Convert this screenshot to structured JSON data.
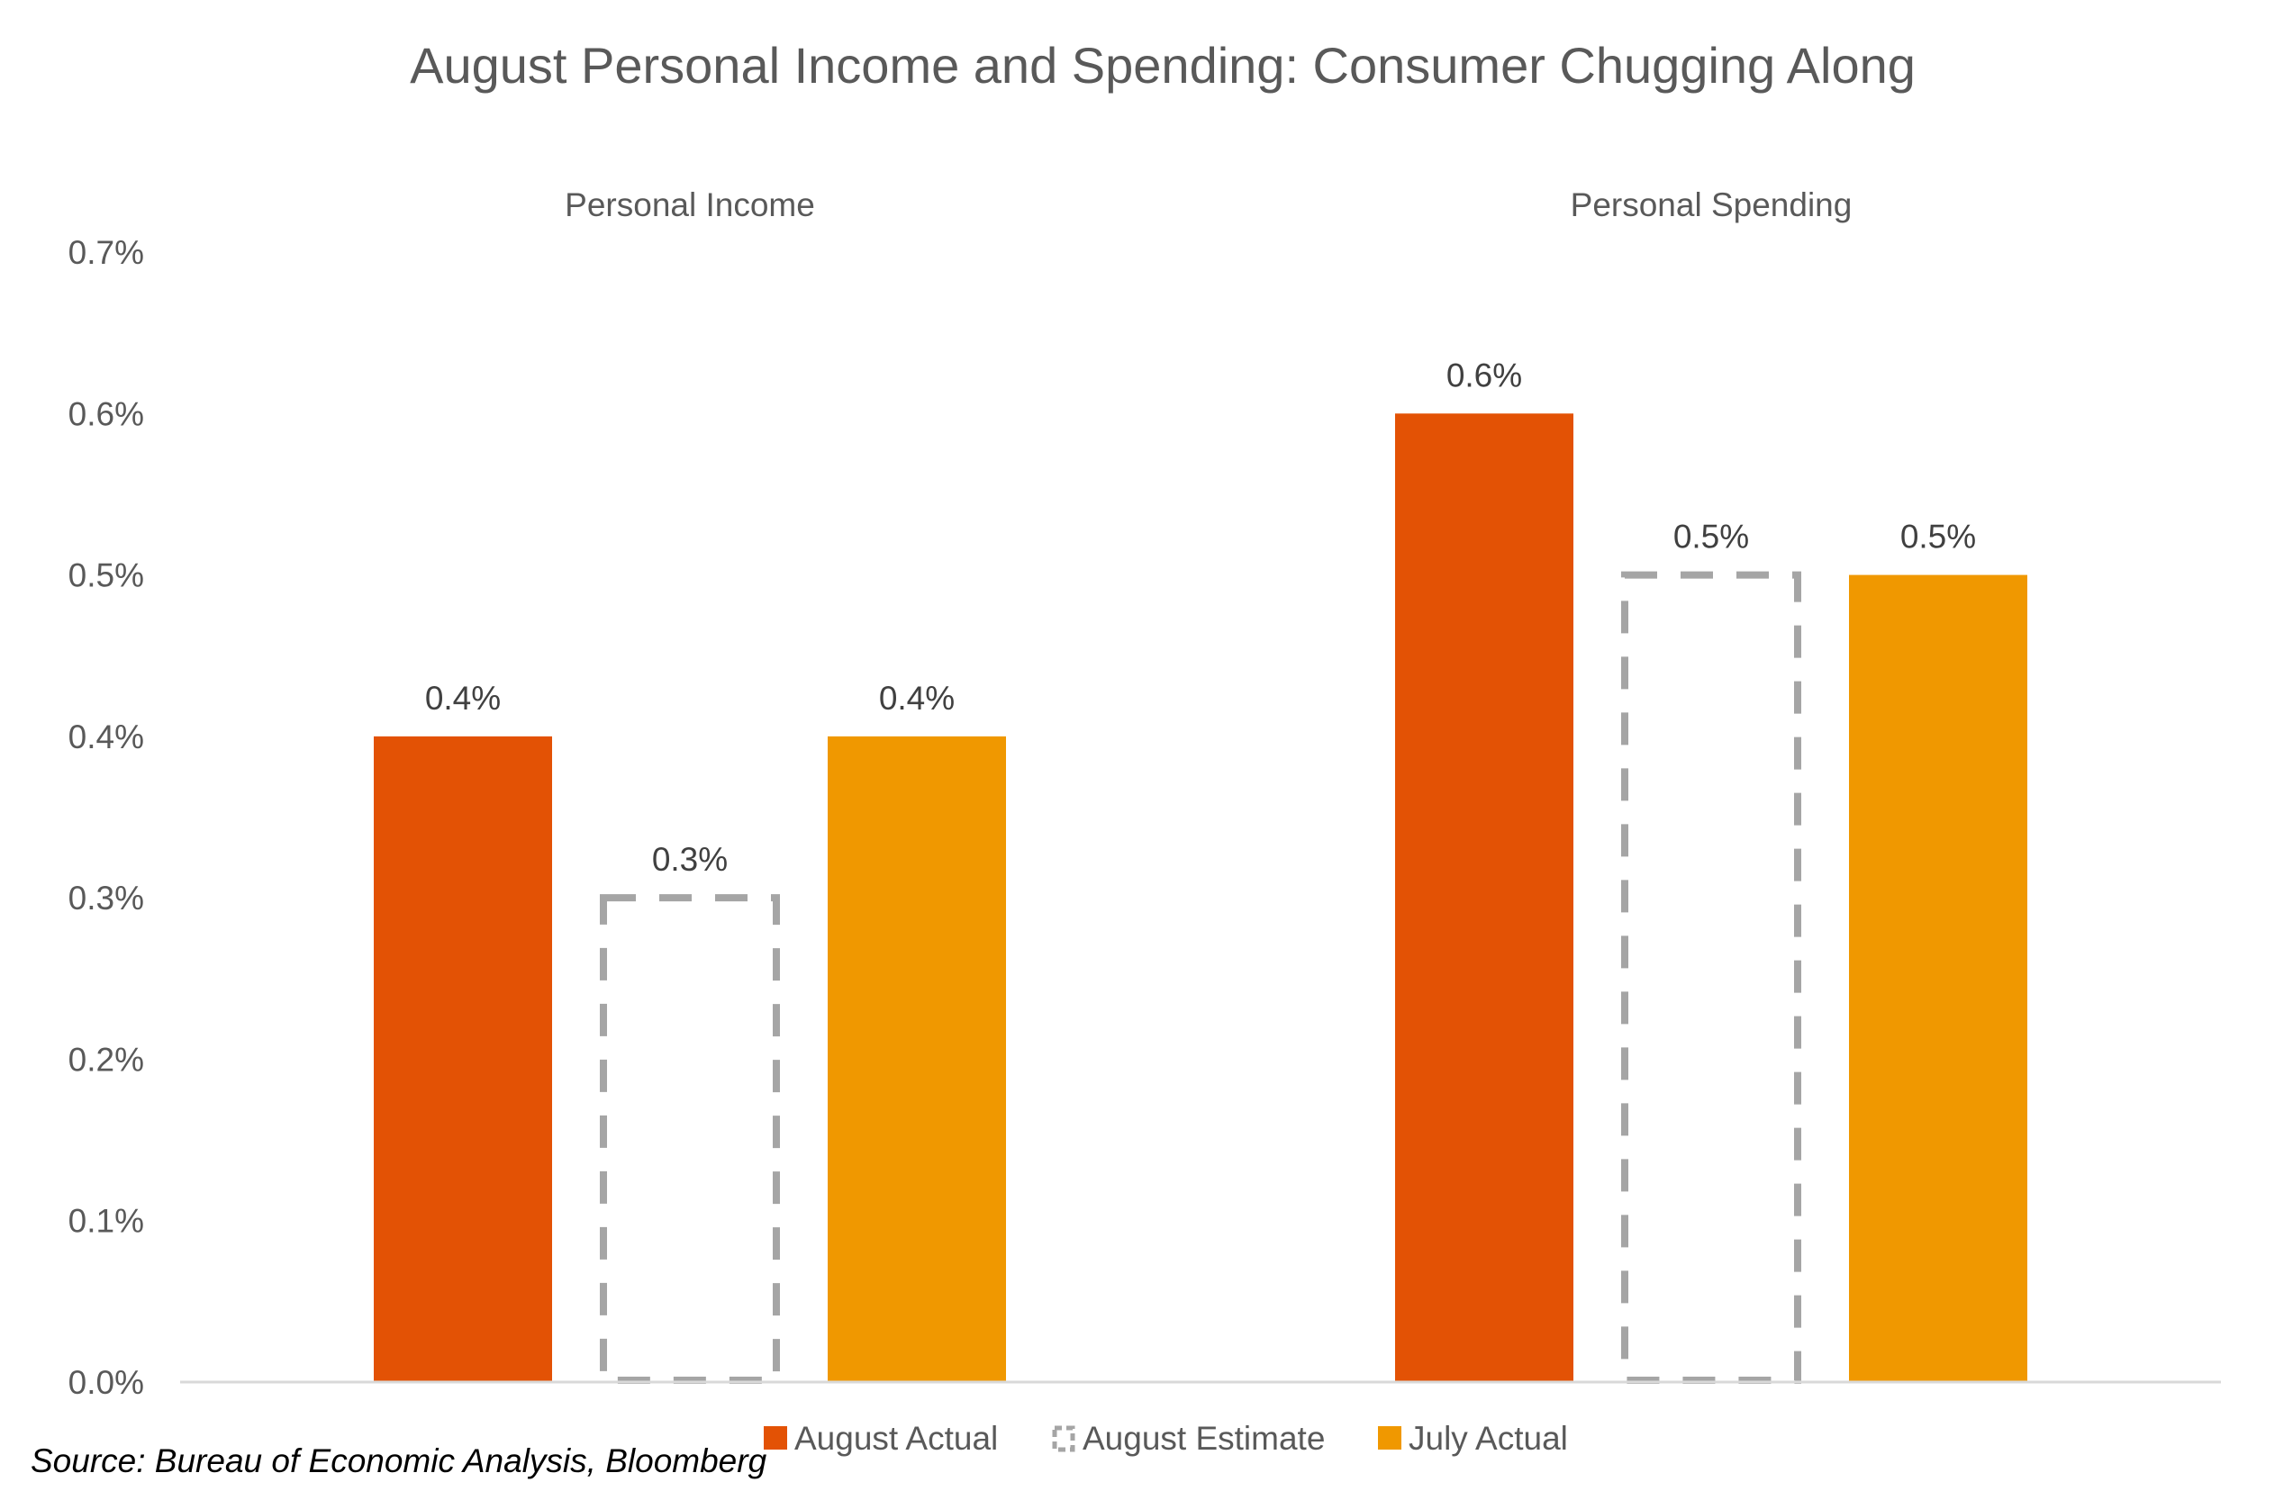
{
  "chart_data": {
    "type": "bar",
    "title": "August Personal Income and Spending: Consumer Chugging Along",
    "categories": [
      "Personal Income",
      "Personal Spending"
    ],
    "series": [
      {
        "name": "August Actual",
        "values": [
          0.4,
          0.6
        ],
        "value_labels": [
          "0.4%",
          "0.6%"
        ],
        "color": "#E35205",
        "style": "solid"
      },
      {
        "name": "August Estimate",
        "values": [
          0.3,
          0.5
        ],
        "value_labels": [
          "0.3%",
          "0.5%"
        ],
        "color": "#A5A5A5",
        "style": "dashed-outline"
      },
      {
        "name": "July Actual",
        "values": [
          0.4,
          0.5
        ],
        "value_labels": [
          "0.4%",
          "0.5%"
        ],
        "color": "#F09800",
        "style": "solid"
      }
    ],
    "y_ticks": [
      "0.0%",
      "0.1%",
      "0.2%",
      "0.3%",
      "0.4%",
      "0.5%",
      "0.6%",
      "0.7%"
    ],
    "ylim": [
      0,
      0.7
    ],
    "grid": false,
    "category_label_placement": "top",
    "legend_placement": "bottom"
  },
  "source": "Source: Bureau of Economic Analysis, Bloomberg",
  "colors": {
    "text": "#595959",
    "axis": "#D9D9D9"
  }
}
